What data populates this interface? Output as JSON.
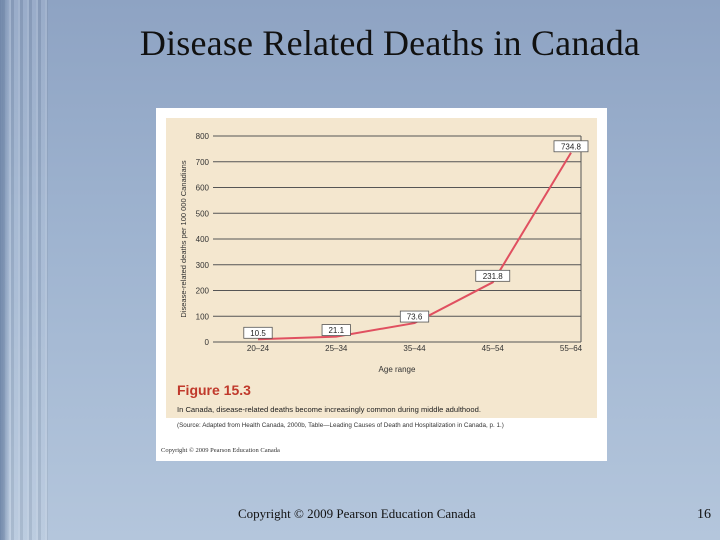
{
  "slide": {
    "title": "Disease Related Deaths in Canada",
    "footer_copyright": "Copyright © 2009 Pearson Education Canada",
    "page_number": "16"
  },
  "figure": {
    "label": "Figure 15.3",
    "caption": "In Canada, disease-related deaths become increasingly common during middle adulthood.",
    "source": "(Source: Adapted from Health Canada, 2000b, Table—Leading Causes of Death and Hospitalization in Canada, p. 1.)",
    "copyright": "Copyright © 2009 Pearson Education Canada"
  },
  "colors": {
    "line": "#e05060",
    "plot_bg": "#f4e7cf",
    "grid": "#555555",
    "figure_label": "#c0392b"
  },
  "chart_data": {
    "type": "line",
    "title": "",
    "xlabel": "Age range",
    "ylabel": "Disease-related deaths per 100 000 Canadians",
    "categories": [
      "20–24",
      "25–34",
      "35–44",
      "45–54",
      "55–64"
    ],
    "values": [
      10.5,
      21.1,
      73.6,
      231.8,
      734.8
    ],
    "data_labels": [
      "10.5",
      "21.1",
      "73.6",
      "231.8",
      "734.8"
    ],
    "ylim": [
      0,
      800
    ],
    "yticks": [
      0,
      100,
      200,
      300,
      400,
      500,
      600,
      700,
      800
    ],
    "grid": true
  }
}
